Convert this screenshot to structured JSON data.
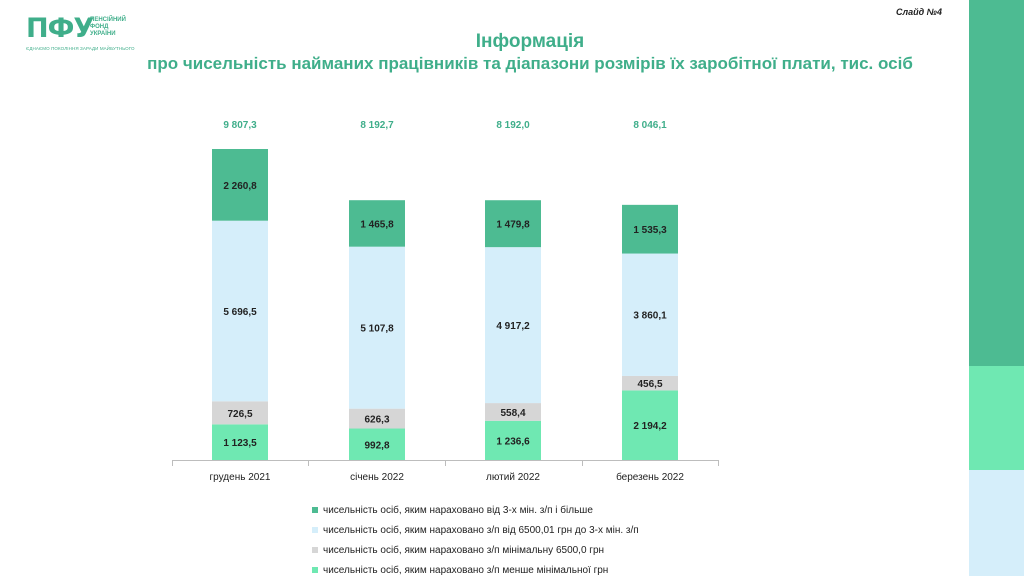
{
  "logo": {
    "mark": "ПФУ",
    "lines": [
      "ПЕНСІЙНИЙ",
      "ФОНД",
      "УКРАЇНИ"
    ],
    "tagline": "ЄДНАЄМО ПОКОЛІННЯ ЗАРАДИ МАЙБУТНЬОГО"
  },
  "slide_label": "Слайд №4",
  "title_line1": "Інформація",
  "title_line2": "про чисельність найманих працівників та діапазони розмірів їх заробітної плати, тис. осіб",
  "colors": {
    "accent": "#3fae8a",
    "series": [
      "#6fe8b2",
      "#d6d6d6",
      "#d5eefa",
      "#4dbb92"
    ]
  },
  "chart_data": {
    "type": "bar",
    "stacked": true,
    "categories": [
      "грудень 2021",
      "січень 2022",
      "лютий 2022",
      "березень 2022"
    ],
    "series": [
      {
        "name": "чисельність осіб, яким нараховано з/п менше мінімальної грн",
        "values": [
          1123.5,
          992.8,
          1236.6,
          2194.2
        ],
        "labels": [
          "1 123,5",
          "992,8",
          "1 236,6",
          "2 194,2"
        ]
      },
      {
        "name": "чисельність осіб, яким нараховано з/п  мінімальну 6500,0 грн",
        "values": [
          726.5,
          626.3,
          558.4,
          456.5
        ],
        "labels": [
          "726,5",
          "626,3",
          "558,4",
          "456,5"
        ]
      },
      {
        "name": "чисельність осіб, яким нараховано з/п від 6500,01 грн до 3-х мін. з/п",
        "values": [
          5696.5,
          5107.8,
          4917.2,
          3860.1
        ],
        "labels": [
          "5 696,5",
          "5 107,8",
          "4 917,2",
          "3 860,1"
        ]
      },
      {
        "name": "чисельність осіб, яким нараховано від 3-х мін. з/п і більше",
        "values": [
          2260.8,
          1465.8,
          1479.8,
          1535.3
        ],
        "labels": [
          "2 260,8",
          "1 465,8",
          "1 479,8",
          "1 535,3"
        ]
      }
    ],
    "totals": [
      9807.3,
      8192.7,
      8192.0,
      8046.1
    ],
    "total_labels": [
      "9 807,3",
      "8 192,7",
      "8 192,0",
      "8 046,1"
    ],
    "legend_order": [
      3,
      2,
      1,
      0
    ],
    "legend_placement": "bottom",
    "grid": false
  }
}
